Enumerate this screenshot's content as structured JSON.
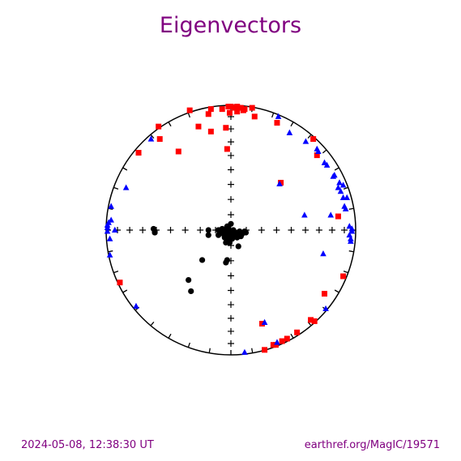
{
  "page": {
    "title": "Eigenvectors",
    "timestamp": "2024-05-08, 12:38:30 UT",
    "source": "earthref.org/MagIC/19571"
  },
  "colors": {
    "title": "#800080",
    "footer": "#800080",
    "net": "#000000"
  },
  "chart_data": {
    "type": "scatter",
    "projection": "equal-area stereonet",
    "title": "Eigenvectors",
    "xlim": [
      -1,
      1
    ],
    "ylim": [
      -1,
      1
    ],
    "grid": false,
    "legend": "none",
    "series": [
      {
        "marker": "square",
        "color": "#ff0000",
        "points": [
          [
            -0.33,
            0.96
          ],
          [
            -0.16,
            0.97
          ],
          [
            -0.18,
            0.93
          ],
          [
            -0.07,
            0.97
          ],
          [
            -0.02,
            0.99
          ],
          [
            0.0,
            0.99
          ],
          [
            0.03,
            0.98
          ],
          [
            0.05,
            0.99
          ],
          [
            0.08,
            0.98
          ],
          [
            0.11,
            0.97
          ],
          [
            0.17,
            0.98
          ],
          [
            -0.01,
            0.94
          ],
          [
            0.05,
            0.95
          ],
          [
            0.1,
            0.96
          ],
          [
            0.19,
            0.91
          ],
          [
            0.37,
            0.86
          ],
          [
            -0.58,
            0.83
          ],
          [
            -0.57,
            0.73
          ],
          [
            -0.26,
            0.83
          ],
          [
            -0.16,
            0.79
          ],
          [
            -0.04,
            0.82
          ],
          [
            -0.42,
            0.63
          ],
          [
            -0.74,
            0.62
          ],
          [
            -0.03,
            0.65
          ],
          [
            0.66,
            0.73
          ],
          [
            0.69,
            0.6
          ],
          [
            0.4,
            0.38
          ],
          [
            0.86,
            0.11
          ],
          [
            0.9,
            -0.37
          ],
          [
            0.75,
            -0.51
          ],
          [
            0.64,
            -0.72
          ],
          [
            0.67,
            -0.73
          ],
          [
            0.53,
            -0.82
          ],
          [
            0.45,
            -0.87
          ],
          [
            0.41,
            -0.89
          ],
          [
            0.36,
            -0.92
          ],
          [
            0.34,
            -0.92
          ],
          [
            0.25,
            -0.75
          ],
          [
            0.27,
            -0.96
          ],
          [
            -0.89,
            -0.42
          ]
        ]
      },
      {
        "marker": "triangle",
        "color": "#0000ff",
        "points": [
          [
            0.38,
            0.91
          ],
          [
            0.47,
            0.78
          ],
          [
            0.6,
            0.71
          ],
          [
            0.69,
            0.65
          ],
          [
            0.7,
            0.63
          ],
          [
            0.75,
            0.54
          ],
          [
            0.77,
            0.52
          ],
          [
            0.82,
            0.43
          ],
          [
            0.83,
            0.44
          ],
          [
            0.87,
            0.38
          ],
          [
            0.86,
            0.34
          ],
          [
            0.9,
            0.36
          ],
          [
            0.88,
            0.31
          ],
          [
            0.9,
            0.26
          ],
          [
            0.93,
            0.26
          ],
          [
            0.91,
            0.19
          ],
          [
            0.92,
            0.17
          ],
          [
            0.95,
            0.03
          ],
          [
            0.97,
            -0.01
          ],
          [
            0.97,
            0.01
          ],
          [
            0.95,
            -0.04
          ],
          [
            0.96,
            -0.07
          ],
          [
            0.96,
            -0.09
          ],
          [
            0.8,
            0.12
          ],
          [
            0.59,
            0.12
          ],
          [
            0.39,
            0.37
          ],
          [
            -0.64,
            0.73
          ],
          [
            -0.84,
            0.34
          ],
          [
            -0.96,
            0.19
          ],
          [
            -0.96,
            0.08
          ],
          [
            -0.98,
            0.06
          ],
          [
            -0.99,
            0.04
          ],
          [
            -0.99,
            0.02
          ],
          [
            -0.93,
            0.0
          ],
          [
            -0.99,
            -0.01
          ],
          [
            -0.97,
            -0.07
          ],
          [
            -0.97,
            -0.2
          ],
          [
            -0.76,
            -0.61
          ],
          [
            0.76,
            -0.63
          ],
          [
            0.27,
            -0.74
          ],
          [
            0.74,
            -0.19
          ],
          [
            0.37,
            -0.9
          ],
          [
            0.11,
            -0.98
          ]
        ]
      },
      {
        "marker": "circle",
        "color": "#000000",
        "points": [
          [
            -0.62,
            0.01
          ],
          [
            -0.61,
            -0.01
          ],
          [
            -0.61,
            -0.02
          ],
          [
            -0.18,
            0.0
          ],
          [
            -0.18,
            -0.04
          ],
          [
            -0.1,
            0.0
          ],
          [
            -0.1,
            -0.04
          ],
          [
            -0.08,
            -0.02
          ],
          [
            -0.07,
            0.01
          ],
          [
            -0.06,
            -0.03
          ],
          [
            -0.05,
            -0.05
          ],
          [
            -0.05,
            -0.06
          ],
          [
            -0.04,
            0.01
          ],
          [
            -0.04,
            -0.02
          ],
          [
            -0.04,
            -0.1
          ],
          [
            -0.03,
            0.03
          ],
          [
            -0.03,
            -0.06
          ],
          [
            -0.02,
            0.02
          ],
          [
            -0.02,
            -0.02
          ],
          [
            -0.02,
            -0.04
          ],
          [
            -0.01,
            -0.08
          ],
          [
            -0.01,
            -0.1
          ],
          [
            0.0,
            0.05
          ],
          [
            0.0,
            -0.04
          ],
          [
            0.01,
            -0.01
          ],
          [
            0.01,
            -0.07
          ],
          [
            0.02,
            0.0
          ],
          [
            0.02,
            -0.05
          ],
          [
            0.03,
            -0.03
          ],
          [
            0.05,
            -0.02
          ],
          [
            0.05,
            -0.06
          ],
          [
            0.06,
            -0.13
          ],
          [
            0.07,
            -0.01
          ],
          [
            0.08,
            -0.05
          ],
          [
            0.09,
            -0.03
          ],
          [
            0.11,
            -0.01
          ],
          [
            0.12,
            -0.02
          ],
          [
            -0.23,
            -0.24
          ],
          [
            -0.03,
            -0.24
          ],
          [
            -0.04,
            -0.26
          ],
          [
            -0.34,
            -0.4
          ],
          [
            -0.32,
            -0.49
          ]
        ]
      }
    ]
  }
}
